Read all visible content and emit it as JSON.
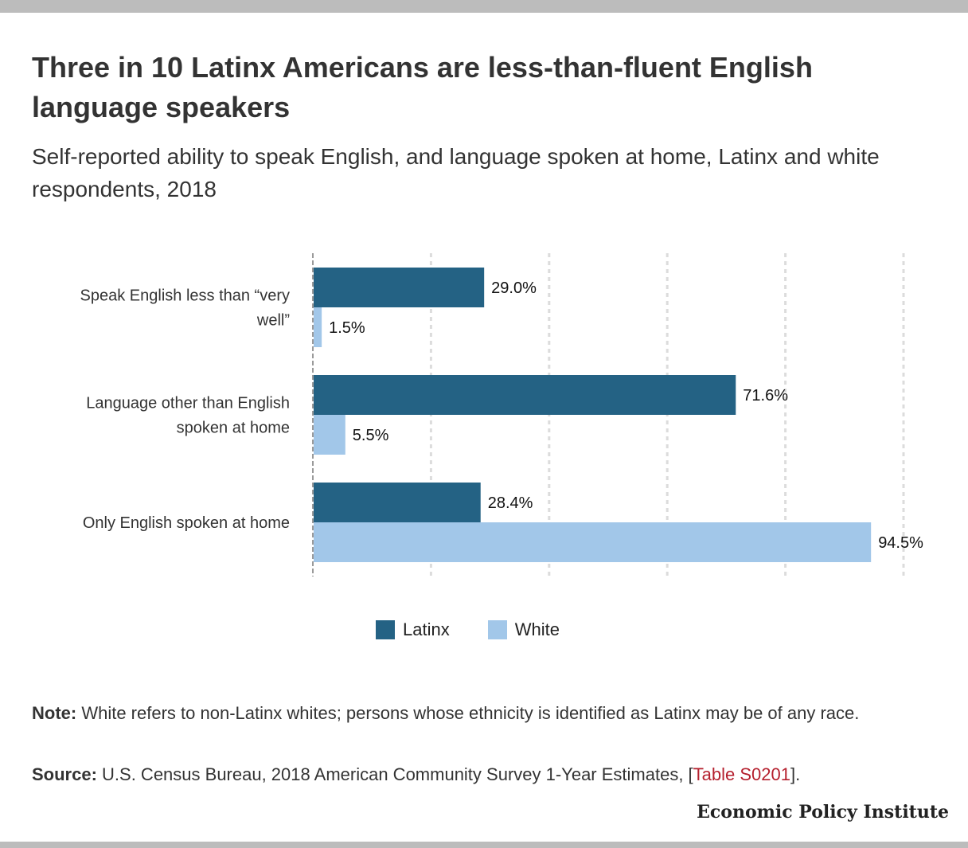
{
  "title": "Three in 10 Latinx Americans are less-than-fluent English language speakers",
  "subtitle": "Self-reported ability to speak English, and language spoken at home, Latinx and white respondents, 2018",
  "chart_data": {
    "type": "bar",
    "orientation": "horizontal",
    "categories": [
      [
        "Speak English less than “very",
        "well”"
      ],
      [
        "Language other than English",
        "spoken at home"
      ],
      [
        "Only English spoken at home"
      ]
    ],
    "series": [
      {
        "name": "Latinx",
        "color": "#246284",
        "values": [
          29.0,
          71.6,
          28.4
        ],
        "labels": [
          "29.0%",
          "71.6%",
          "28.4%"
        ]
      },
      {
        "name": "White",
        "color": "#a2c7e9",
        "values": [
          1.5,
          5.5,
          94.5
        ],
        "labels": [
          "1.5%",
          "5.5%",
          "94.5%"
        ]
      }
    ],
    "xlim": [
      0,
      100
    ],
    "gridlines": [
      20,
      40,
      60,
      80,
      100
    ],
    "grid": true,
    "legend": "bottom-center"
  },
  "note": {
    "label": "Note:",
    "text": " White refers to non-Latinx whites; persons whose ethnicity is identified as Latinx may be of any race."
  },
  "source": {
    "label": "Source:",
    "text": " U.S. Census Bureau, 2018 American Community Survey 1-Year Estimates, [",
    "link": "Table S0201",
    "after": "]."
  },
  "brand": "Economic Policy Institute"
}
